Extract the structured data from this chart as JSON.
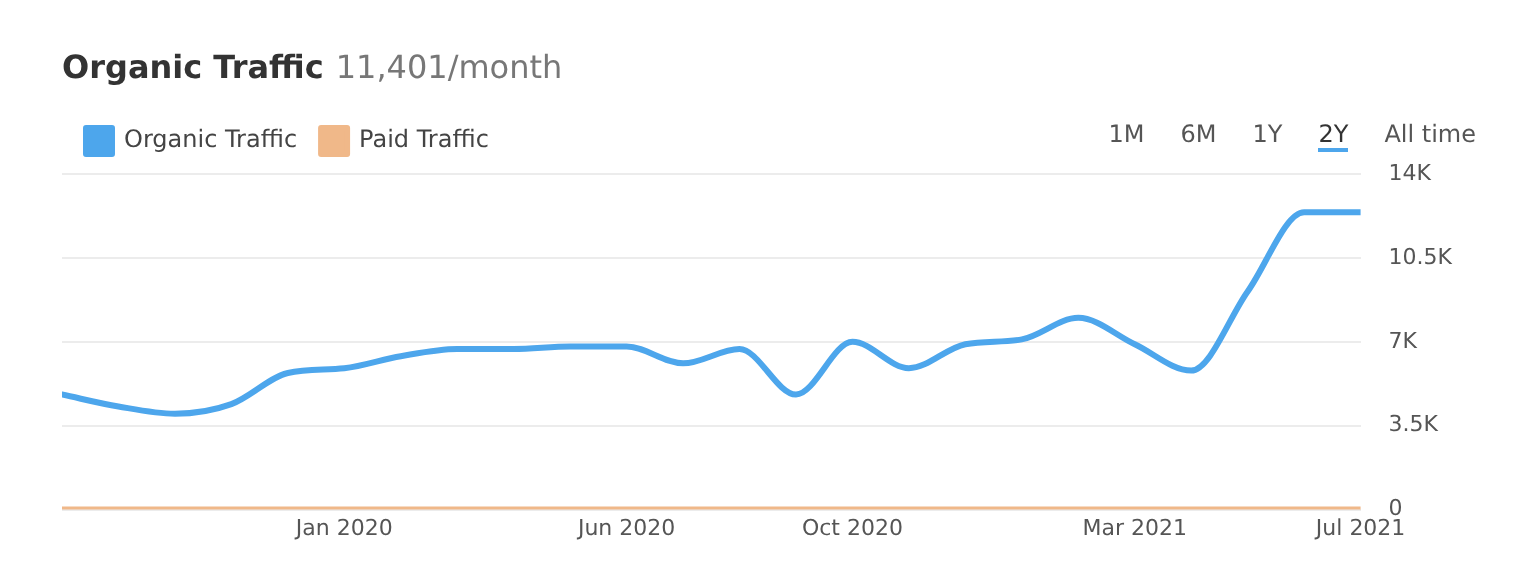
{
  "chart_data": {
    "type": "line",
    "title": "Organic Traffic",
    "subtitle": "11,401/month",
    "x": [
      "2019-08",
      "2019-09",
      "2019-10",
      "2019-11",
      "2019-12",
      "2020-01",
      "2020-02",
      "2020-03",
      "2020-04",
      "2020-05",
      "2020-06",
      "2020-07",
      "2020-08",
      "2020-09",
      "2020-10",
      "2020-11",
      "2020-12",
      "2021-01",
      "2021-02",
      "2021-03",
      "2021-04",
      "2021-05",
      "2021-06",
      "2021-07"
    ],
    "series": [
      {
        "name": "Organic Traffic",
        "color": "#4da6ec",
        "values": [
          4800,
          4300,
          4000,
          4400,
          5700,
          5900,
          6400,
          6700,
          6700,
          6800,
          6800,
          6100,
          6700,
          4800,
          7000,
          5900,
          6900,
          7100,
          8000,
          6900,
          5800,
          9100,
          12400,
          12400
        ]
      },
      {
        "name": "Paid Traffic",
        "color": "#f0b889",
        "values": [
          0,
          0,
          0,
          0,
          0,
          0,
          0,
          0,
          0,
          0,
          0,
          0,
          0,
          0,
          0,
          0,
          0,
          0,
          0,
          0,
          0,
          0,
          0,
          0
        ]
      }
    ],
    "xlim": [
      "2019-08",
      "2021-07"
    ],
    "xticks": [
      {
        "value": "2020-01",
        "label": "Jan 2020"
      },
      {
        "value": "2020-06",
        "label": "Jun 2020"
      },
      {
        "value": "2020-10",
        "label": "Oct 2020"
      },
      {
        "value": "2021-03",
        "label": "Mar 2021"
      },
      {
        "value": "2021-07",
        "label": "Jul 2021"
      }
    ],
    "ylim": [
      0,
      14000
    ],
    "yticks": [
      0,
      {
        "value": 3500,
        "label": "3.5K"
      },
      {
        "value": 7000,
        "label": "7K"
      },
      {
        "value": 10500,
        "label": "10.5K"
      },
      {
        "value": 14000,
        "label": "14K"
      }
    ],
    "grid": "y",
    "legend": "top left",
    "marker": "none",
    "line_style": "solid",
    "annotations": [
      "1M",
      "6M",
      "1Y",
      "2Y",
      "All time"
    ]
  }
}
